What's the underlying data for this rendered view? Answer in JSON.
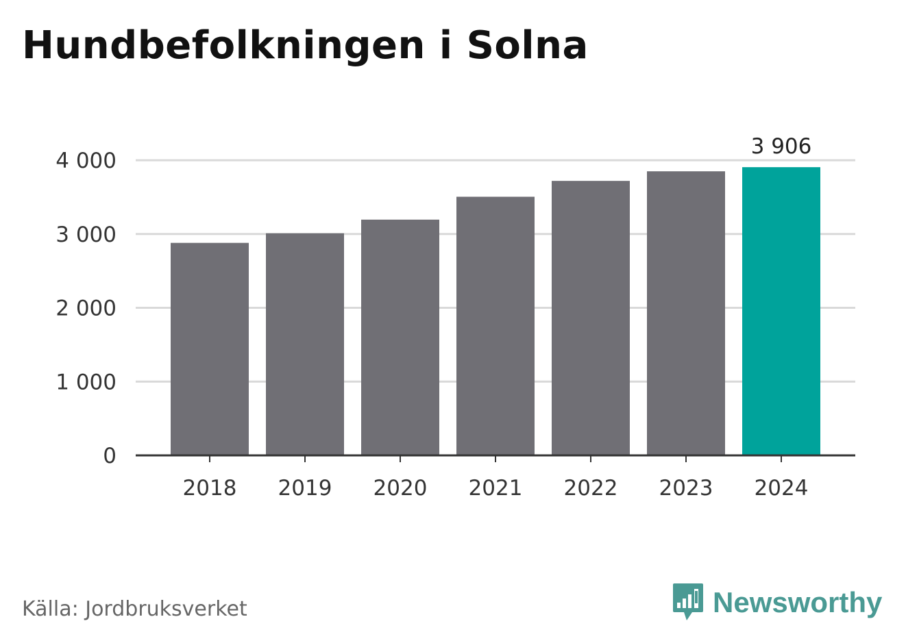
{
  "title": "Hundbefolkningen i Solna",
  "source": "Källa: Jordbruksverket",
  "brand": {
    "name": "Newsworthy",
    "icon": "newsworthy-logo-icon",
    "color": "#4a9a94"
  },
  "colors": {
    "bar": "#706f75",
    "highlight": "#00a39b",
    "grid": "#d9d9d9",
    "axis": "#333333"
  },
  "chart_data": {
    "type": "bar",
    "categories": [
      "2018",
      "2019",
      "2020",
      "2021",
      "2022",
      "2023",
      "2024"
    ],
    "values": [
      2880,
      3010,
      3195,
      3505,
      3720,
      3850,
      3906
    ],
    "highlight_index": 6,
    "data_labels": [
      {
        "index": 6,
        "text": "3 906"
      }
    ],
    "yticks": [
      0,
      1000,
      2000,
      3000,
      4000
    ],
    "ytick_labels": [
      "0",
      "1 000",
      "2 000",
      "3 000",
      "4 000"
    ],
    "ylim": [
      0,
      4000
    ],
    "grid": true,
    "legend": "none"
  }
}
